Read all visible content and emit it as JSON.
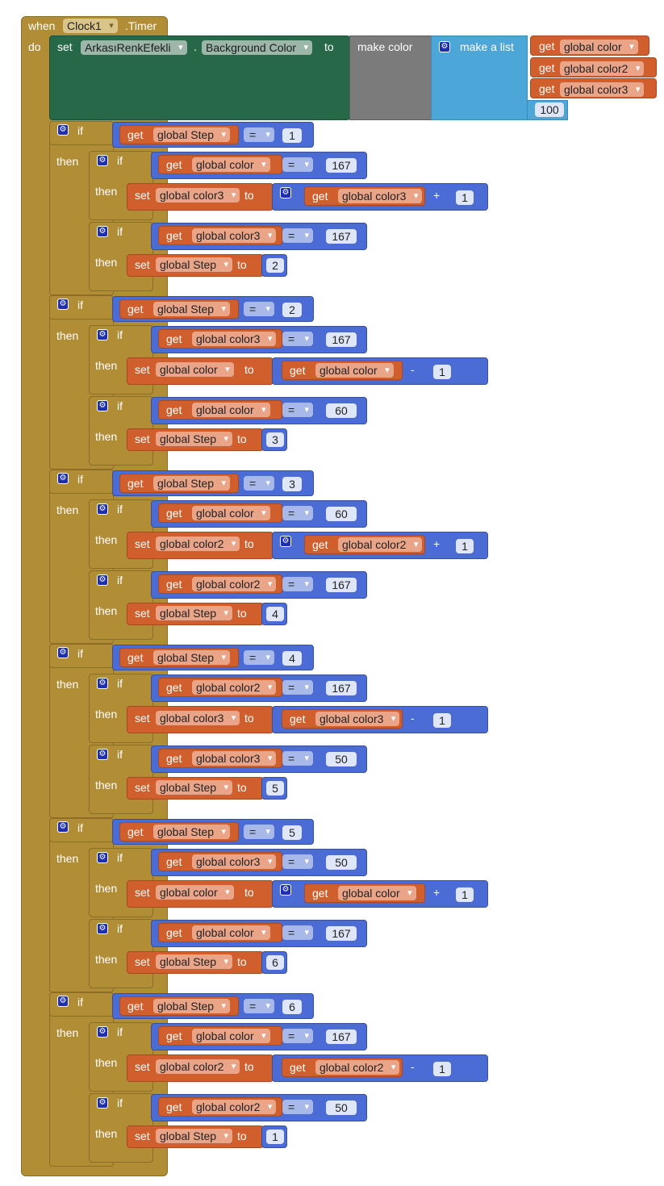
{
  "event": {
    "when": "when",
    "component": "Clock1",
    "event": ".Timer",
    "do": "do"
  },
  "set_bg": {
    "set": "set",
    "component": "ArkasıRenkEfekli",
    "dot": ".",
    "property": "Background Color",
    "to": "to",
    "make_color": "make color",
    "make_list": "make a list",
    "items": [
      "global color",
      "global color2",
      "global color3"
    ],
    "alpha": "100"
  },
  "kw": {
    "if": "if",
    "then": "then",
    "get": "get",
    "set": "set",
    "to": "to",
    "eq": "=",
    "plus": "+",
    "minus": "-"
  },
  "steps": [
    {
      "cond": "1",
      "a": {
        "var": "global color",
        "val": "167",
        "target": "global color3",
        "src": "global color3",
        "op": "+",
        "gear": true
      },
      "b": {
        "var": "global color3",
        "val": "167",
        "next": "2"
      }
    },
    {
      "cond": "2",
      "a": {
        "var": "global color3",
        "val": "167",
        "target": "global color",
        "src": "global color",
        "op": "-",
        "gear": false
      },
      "b": {
        "var": "global color",
        "val": "60",
        "next": "3"
      }
    },
    {
      "cond": "3",
      "a": {
        "var": "global color",
        "val": "60",
        "target": "global color2",
        "src": "global color2",
        "op": "+",
        "gear": true
      },
      "b": {
        "var": "global color2",
        "val": "167",
        "next": "4"
      }
    },
    {
      "cond": "4",
      "a": {
        "var": "global color2",
        "val": "167",
        "target": "global color3",
        "src": "global color3",
        "op": "-",
        "gear": false
      },
      "b": {
        "var": "global color3",
        "val": "50",
        "next": "5"
      }
    },
    {
      "cond": "5",
      "a": {
        "var": "global color3",
        "val": "50",
        "target": "global color",
        "src": "global color",
        "op": "+",
        "gear": true
      },
      "b": {
        "var": "global color",
        "val": "167",
        "next": "6"
      }
    },
    {
      "cond": "6",
      "a": {
        "var": "global color",
        "val": "167",
        "target": "global color2",
        "src": "global color2",
        "op": "-",
        "gear": false
      },
      "b": {
        "var": "global color2",
        "val": "50",
        "next": "1"
      }
    }
  ],
  "step_var": "global Step",
  "colors": {
    "control": "#b18e35",
    "variable": "#d05f2d",
    "math": "#4a6cd4",
    "color": "#7b7b7b",
    "list": "#4ca7d8",
    "component": "#266848"
  }
}
